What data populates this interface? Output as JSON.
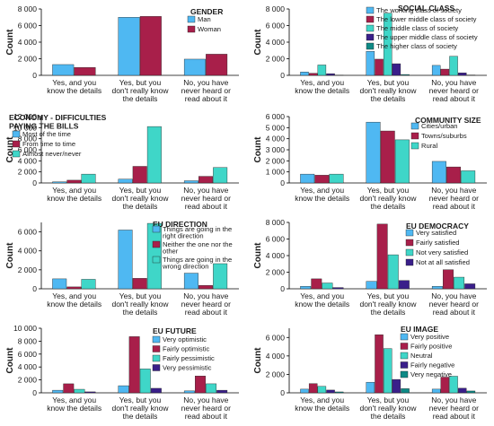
{
  "chart_data": [
    {
      "type": "bar",
      "title": [
        "GENDER"
      ],
      "ylabel": "Count",
      "ylim": [
        0,
        8000
      ],
      "yticks": [
        "0",
        "2 000",
        "4 000",
        "6 000",
        "8 000"
      ],
      "categories": [
        [
          "Yes, and you",
          "know the details"
        ],
        [
          "Yes, but you",
          "don't really know",
          "the details"
        ],
        [
          "No, you have",
          "never heard or",
          "read about it"
        ]
      ],
      "legend": "top-right",
      "series": [
        {
          "name": "Man",
          "color": "#4fb8f2",
          "values": [
            1300,
            7000,
            1950
          ]
        },
        {
          "name": "Woman",
          "color": "#a81f4a",
          "values": [
            950,
            7100,
            2550
          ]
        }
      ]
    },
    {
      "type": "bar",
      "title": [
        "SOCIAL CLASS"
      ],
      "ylabel": "Count",
      "ylim": [
        0,
        8000
      ],
      "yticks": [
        "0",
        "2 000",
        "4 000",
        "6 000",
        "8 000"
      ],
      "categories": [
        [
          "Yes, and you",
          "know the details"
        ],
        [
          "Yes, but you",
          "don't really know",
          "the details"
        ],
        [
          "No, you have",
          "never heard or",
          "read about it"
        ]
      ],
      "legend": "top-right",
      "series": [
        {
          "name": "The working class of society",
          "color": "#4fb8f2",
          "values": [
            400,
            2900,
            1200
          ]
        },
        {
          "name": "The lower middle class of society",
          "color": "#a81f4a",
          "values": [
            250,
            1950,
            750
          ]
        },
        {
          "name": "The middle class of society",
          "color": "#3fd6c8",
          "values": [
            1250,
            7500,
            2300
          ]
        },
        {
          "name": "The upper middle class of society",
          "color": "#3a1f8a",
          "values": [
            200,
            1400,
            300
          ]
        },
        {
          "name": "The higher class of society",
          "color": "#0e8a86",
          "values": [
            30,
            100,
            40
          ]
        }
      ]
    },
    {
      "type": "bar",
      "title": [
        "ECONOMY - DIFFICULTIES",
        "PAYING THE BILLS"
      ],
      "ylabel": "Count",
      "ylim": [
        0,
        12000
      ],
      "yticks": [
        "0",
        "2 000",
        "4 000",
        "6 000",
        "8 000",
        "10 000",
        "12 000"
      ],
      "categories": [
        [
          "Yes, and you",
          "know the details"
        ],
        [
          "Yes, but you",
          "don't really know",
          "the details"
        ],
        [
          "No, you have",
          "never heard or",
          "read about it"
        ]
      ],
      "legend": "top-left",
      "series": [
        {
          "name": "Most of the time",
          "color": "#4fb8f2",
          "values": [
            200,
            700,
            400
          ]
        },
        {
          "name": "From time to time",
          "color": "#a81f4a",
          "values": [
            500,
            3000,
            1200
          ]
        },
        {
          "name": "Almost never/never",
          "color": "#3fd6c8",
          "values": [
            1600,
            10200,
            2800
          ]
        }
      ]
    },
    {
      "type": "bar",
      "title": [
        "COMMUNITY SIZE"
      ],
      "ylabel": "Count",
      "ylim": [
        0,
        6000
      ],
      "yticks": [
        "0",
        "1 000",
        "2 000",
        "3 000",
        "4 000",
        "5 000",
        "6 000"
      ],
      "categories": [
        [
          "Yes, and you",
          "know the details"
        ],
        [
          "Yes, but you",
          "don't really know",
          "the details"
        ],
        [
          "No, you have",
          "never heard or",
          "read about it"
        ]
      ],
      "legend": "top-right",
      "series": [
        {
          "name": "Cities/urban",
          "color": "#4fb8f2",
          "values": [
            800,
            5500,
            1950
          ]
        },
        {
          "name": "Towns/suburbs",
          "color": "#a81f4a",
          "values": [
            700,
            4700,
            1450
          ]
        },
        {
          "name": "Rural",
          "color": "#3fd6c8",
          "values": [
            800,
            3900,
            1100
          ]
        }
      ]
    },
    {
      "type": "bar",
      "title": [
        "EU DIRECTION"
      ],
      "ylabel": "Count",
      "ylim": [
        0,
        7000
      ],
      "yticks": [
        "0",
        "2 000",
        "4 000",
        "6 000"
      ],
      "categories": [
        [
          "Yes, and you",
          "know the details"
        ],
        [
          "Yes, but you",
          "don't really know",
          "the details"
        ],
        [
          "No, you have",
          "never heard or",
          "read about it"
        ]
      ],
      "legend": "top-right",
      "series": [
        {
          "name": [
            "Things are going in the",
            "right direction"
          ],
          "color": "#4fb8f2",
          "values": [
            1050,
            6200,
            1650
          ]
        },
        {
          "name": [
            "Neither the one nor the",
            "other"
          ],
          "color": "#a81f4a",
          "values": [
            200,
            1100,
            350
          ]
        },
        {
          "name": [
            "Things are going in the",
            "wrong direction"
          ],
          "color": "#3fd6c8",
          "values": [
            1000,
            6900,
            2650
          ]
        }
      ]
    },
    {
      "type": "bar",
      "title": [
        "EU DEMOCRACY"
      ],
      "ylabel": "Count",
      "ylim": [
        0,
        8000
      ],
      "yticks": [
        "0",
        "2 000",
        "4 000",
        "6 000",
        "8 000"
      ],
      "categories": [
        [
          "Yes, and you",
          "know the details"
        ],
        [
          "Yes, but you",
          "don't really know",
          "the details"
        ],
        [
          "No, you have",
          "never heard or",
          "read about it"
        ]
      ],
      "legend": "top-right",
      "series": [
        {
          "name": "Very satisfied",
          "color": "#4fb8f2",
          "values": [
            300,
            900,
            300
          ]
        },
        {
          "name": "Fairly satisfied",
          "color": "#a81f4a",
          "values": [
            1200,
            7800,
            2300
          ]
        },
        {
          "name": "Not very satisfied",
          "color": "#3fd6c8",
          "values": [
            700,
            4100,
            1400
          ]
        },
        {
          "name": "Not at all satisfied",
          "color": "#3a1f8a",
          "values": [
            150,
            1000,
            600
          ]
        }
      ]
    },
    {
      "type": "bar",
      "title": [
        "EU FUTURE"
      ],
      "ylabel": "Count",
      "ylim": [
        0,
        10000
      ],
      "yticks": [
        "0",
        "2 000",
        "4 000",
        "6 000",
        "8 000",
        "10 000"
      ],
      "categories": [
        [
          "Yes, and you",
          "know the details"
        ],
        [
          "Yes, but you",
          "don't really know",
          "the details"
        ],
        [
          "No, you have",
          "never heard or",
          "read about it"
        ]
      ],
      "legend": "top-right",
      "series": [
        {
          "name": "Very optimistic",
          "color": "#4fb8f2",
          "values": [
            400,
            1100,
            300
          ]
        },
        {
          "name": "Fairly optimistic",
          "color": "#a81f4a",
          "values": [
            1400,
            8700,
            2600
          ]
        },
        {
          "name": "Fairly pessimistic",
          "color": "#3fd6c8",
          "values": [
            550,
            3700,
            1400
          ]
        },
        {
          "name": "Very pessimistic",
          "color": "#3a1f8a",
          "values": [
            150,
            700,
            400
          ]
        }
      ]
    },
    {
      "type": "bar",
      "title": [
        "EU IMAGE"
      ],
      "ylabel": "Count",
      "ylim": [
        0,
        7000
      ],
      "yticks": [
        "0",
        "2 000",
        "4 000",
        "6 000"
      ],
      "categories": [
        [
          "Yes, and you",
          "know the details"
        ],
        [
          "Yes, but you",
          "don't really know",
          "the details"
        ],
        [
          "No, you have",
          "never heard or",
          "read about it"
        ]
      ],
      "legend": "top-right",
      "series": [
        {
          "name": "Very positive",
          "color": "#4fb8f2",
          "values": [
            400,
            1150,
            400
          ]
        },
        {
          "name": "Fairly positive",
          "color": "#a81f4a",
          "values": [
            1000,
            6300,
            1700
          ]
        },
        {
          "name": "Neutral",
          "color": "#3fd6c8",
          "values": [
            700,
            4800,
            1800
          ]
        },
        {
          "name": "Fairly negative",
          "color": "#3a1f8a",
          "values": [
            300,
            1450,
            500
          ]
        },
        {
          "name": "Very negative",
          "color": "#0e8a86",
          "values": [
            100,
            450,
            200
          ]
        }
      ]
    }
  ]
}
